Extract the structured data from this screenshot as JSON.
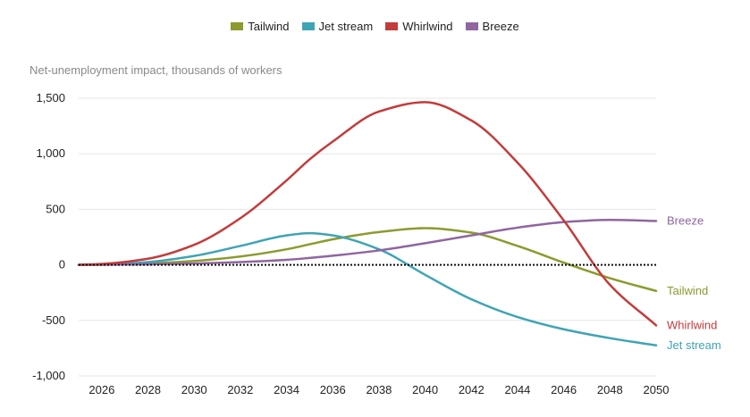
{
  "chart_data": {
    "type": "line",
    "title": "",
    "ylabel": "Net-unemployment impact, thousands of workers",
    "xlabel": "",
    "x": [
      2025,
      2026,
      2028,
      2030,
      2032,
      2034,
      2035,
      2036,
      2038,
      2040,
      2042,
      2044,
      2046,
      2048,
      2050
    ],
    "xlim": [
      2025,
      2050
    ],
    "ylim": [
      -1000,
      1500
    ],
    "x_ticks": [
      "2026",
      "2028",
      "2030",
      "2032",
      "2034",
      "2036",
      "2038",
      "2040",
      "2042",
      "2044",
      "2046",
      "2048",
      "2050"
    ],
    "y_ticks": [
      "1,500",
      "1,000",
      "500",
      "0",
      "-500",
      "-1,000"
    ],
    "grid": true,
    "legend_position": "top",
    "series": [
      {
        "name": "Tailwind",
        "color": "#8c9a2e",
        "values": [
          0,
          2,
          12,
          35,
          75,
          140,
          185,
          230,
          295,
          330,
          290,
          170,
          20,
          -120,
          -235
        ]
      },
      {
        "name": "Jet stream",
        "color": "#3fa4b4",
        "values": [
          0,
          3,
          25,
          80,
          170,
          265,
          285,
          265,
          140,
          -90,
          -310,
          -470,
          -580,
          -660,
          -725
        ]
      },
      {
        "name": "Whirlwind",
        "color": "#c43b3b",
        "values": [
          0,
          8,
          55,
          180,
          420,
          760,
          950,
          1110,
          1380,
          1465,
          1300,
          920,
          400,
          -180,
          -545
        ]
      },
      {
        "name": "Breeze",
        "color": "#9065a0",
        "values": [
          0,
          1,
          5,
          12,
          25,
          45,
          62,
          82,
          130,
          195,
          265,
          335,
          385,
          405,
          395
        ]
      }
    ]
  }
}
